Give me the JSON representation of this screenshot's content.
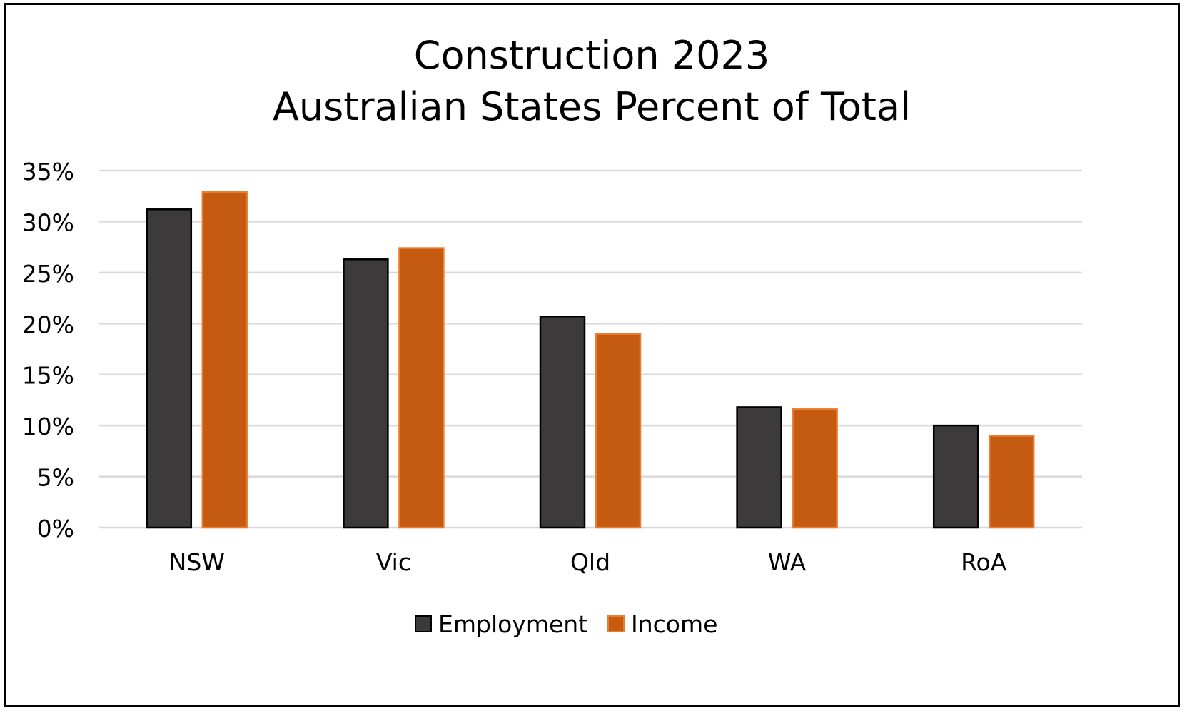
{
  "chart_data": {
    "type": "bar",
    "title": [
      "Construction 2023",
      "Australian States Percent of Total"
    ],
    "categories": [
      "NSW",
      "Vic",
      "Qld",
      "WA",
      "RoA"
    ],
    "series": [
      {
        "name": "Employment",
        "color": "#3c3a3a",
        "values": [
          31.2,
          26.3,
          20.7,
          11.8,
          10.0
        ]
      },
      {
        "name": "Income",
        "color": "#c55a11",
        "values": [
          32.9,
          27.4,
          19.0,
          11.6,
          9.0
        ]
      }
    ],
    "ylim": [
      0,
      35
    ],
    "yticks": [
      0,
      5,
      10,
      15,
      20,
      25,
      30,
      35
    ],
    "ytick_labels": [
      "0%",
      "5%",
      "10%",
      "15%",
      "20%",
      "25%",
      "30%",
      "35%"
    ],
    "grid": true,
    "legend": "bottom"
  }
}
